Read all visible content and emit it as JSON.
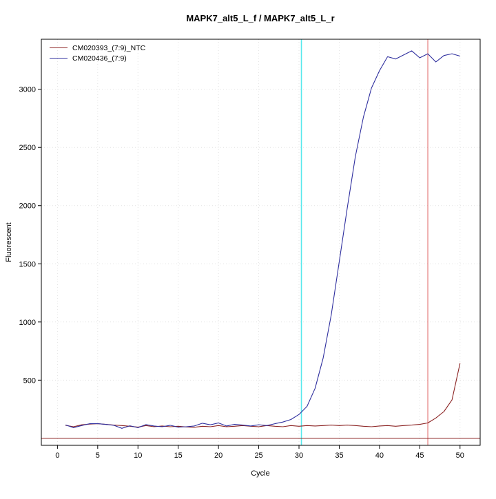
{
  "chart_data": {
    "type": "line",
    "title": "MAPK7_alt5_L_f / MAPK7_alt5_L_r",
    "xlabel": "Cycle",
    "ylabel": "Fluorescent",
    "xlim": [
      -2,
      52.5
    ],
    "ylim": [
      -60,
      3430
    ],
    "x_ticks": [
      0,
      5,
      10,
      15,
      20,
      25,
      30,
      35,
      40,
      45,
      50
    ],
    "y_ticks": [
      500,
      1000,
      1500,
      2000,
      2500,
      3000
    ],
    "grid": "faint dotted gridlines at major ticks",
    "legend_position": "top-left",
    "x": [
      1,
      2,
      3,
      4,
      5,
      6,
      7,
      8,
      9,
      10,
      11,
      12,
      13,
      14,
      15,
      16,
      17,
      18,
      19,
      20,
      21,
      22,
      23,
      24,
      25,
      26,
      27,
      28,
      29,
      30,
      31,
      32,
      33,
      34,
      35,
      36,
      37,
      38,
      39,
      40,
      41,
      42,
      43,
      44,
      45,
      46,
      47,
      48,
      49,
      50
    ],
    "series": [
      {
        "name": "CM020393_(7:9)_NTC",
        "color": "#8b2323",
        "values": [
          112,
          100,
          116,
          122,
          126,
          120,
          114,
          110,
          104,
          96,
          110,
          100,
          106,
          100,
          104,
          98,
          95,
          104,
          100,
          110,
          100,
          104,
          110,
          104,
          100,
          110,
          104,
          100,
          110,
          104,
          110,
          106,
          110,
          114,
          110,
          114,
          110,
          104,
          100,
          106,
          110,
          104,
          110,
          114,
          120,
          132,
          175,
          230,
          330,
          645
        ]
      },
      {
        "name": "CM020436_(7:9)",
        "color": "#2e2e9e",
        "values": [
          115,
          92,
          110,
          126,
          126,
          120,
          112,
          86,
          108,
          92,
          118,
          106,
          100,
          112,
          96,
          100,
          106,
          130,
          116,
          132,
          106,
          120,
          114,
          106,
          116,
          110,
          126,
          140,
          162,
          205,
          275,
          430,
          690,
          1060,
          1520,
          1980,
          2420,
          2760,
          3010,
          3160,
          3280,
          3260,
          3295,
          3330,
          3270,
          3305,
          3235,
          3290,
          3305,
          3285
        ]
      }
    ],
    "annotations": {
      "cyan_vline": {
        "x": 30.3,
        "color": "#55e8ec",
        "meaning": "Ct marker (cyan vertical line)"
      },
      "red_vline": {
        "x": 46.0,
        "color": "#e06060",
        "meaning": "Ct marker (red vertical line)"
      },
      "threshold_hline": {
        "y": 0,
        "color": "#8b2323",
        "meaning": "baseline/threshold (horizontal dark-red line)"
      }
    }
  }
}
